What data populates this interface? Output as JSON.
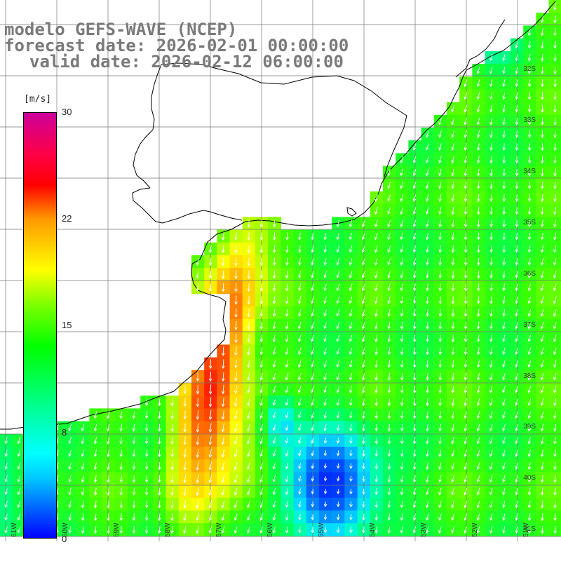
{
  "header": {
    "line1": "modelo GEFS-WAVE (NCEP)",
    "line2": "forecast date: 2026-02-01 00:00:00",
    "line3": "valid date: 2026-02-12 06:00:00"
  },
  "colorbar": {
    "unit": "[m/s]",
    "min": 0,
    "max": 30,
    "ticks": [
      "30",
      "22",
      "15",
      "8",
      "0"
    ],
    "tick_values": [
      30,
      22,
      15,
      8,
      0
    ],
    "colors": [
      "#0000ff",
      "#00c8ff",
      "#00ffff",
      "#00ff00",
      "#7fff00",
      "#ffff00",
      "#ff9900",
      "#ff0000",
      "#ff0044",
      "#cc0099"
    ]
  },
  "grid": {
    "lat_labels": [
      "32S",
      "33S",
      "34S",
      "35S",
      "36S",
      "37S",
      "38S",
      "39S",
      "40S",
      "41S"
    ],
    "lon_labels": [
      "61W",
      "60W",
      "59W",
      "58W",
      "57W",
      "56W",
      "55W",
      "54W",
      "53W",
      "52W",
      "51W"
    ]
  }
}
